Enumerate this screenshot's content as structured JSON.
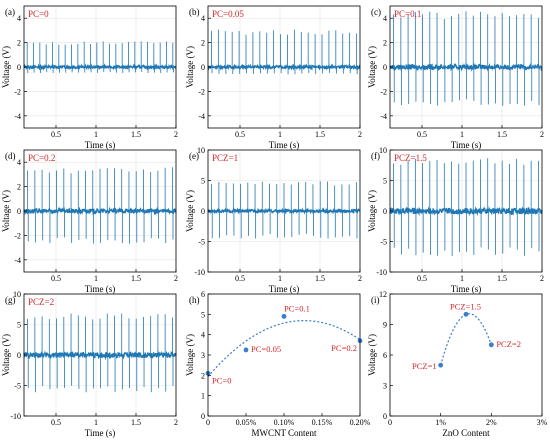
{
  "colors": {
    "signal": "#1f77b4",
    "label_red": "#d62728",
    "point": "#3a7dc9",
    "axis": "#000000"
  },
  "chart_data": [
    {
      "panel": "(a)",
      "label": "PC=0",
      "type": "line",
      "xlabel": "Time (s)",
      "ylabel": "Voltage (V)",
      "xlim": [
        0.1,
        2
      ],
      "ylim": [
        -5,
        5
      ],
      "xticks": [
        0.5,
        1,
        1.5,
        2
      ],
      "yticks": [
        -4,
        -2,
        0,
        2,
        4
      ],
      "xticklabels": [
        "0.5",
        "1",
        "1.5",
        "2"
      ],
      "yticklabels": [
        "-4",
        "-2",
        "0",
        "2",
        "4"
      ],
      "grid": true,
      "signal": {
        "peak_count": 24,
        "pos_amplitude": 2.1,
        "neg_amplitude": -0.5,
        "noise": 0.12
      }
    },
    {
      "panel": "(b)",
      "label": "PC=0.05",
      "type": "line",
      "xlabel": "Time (s)",
      "ylabel": "Voltage (V)",
      "xlim": [
        0.1,
        2
      ],
      "ylim": [
        -5,
        5
      ],
      "xticks": [
        0.5,
        1,
        1.5,
        2
      ],
      "yticks": [
        -4,
        -2,
        0,
        2,
        4
      ],
      "xticklabels": [
        "0.5",
        "1",
        "1.5",
        "2"
      ],
      "yticklabels": [
        "-4",
        "-2",
        "0",
        "2",
        "4"
      ],
      "grid": true,
      "signal": {
        "peak_count": 22,
        "pos_amplitude": 3.1,
        "neg_amplitude": -0.6,
        "noise": 0.12
      }
    },
    {
      "panel": "(c)",
      "label": "PC=0.1",
      "type": "line",
      "xlabel": "Time (s)",
      "ylabel": "Voltage (V)",
      "xlim": [
        0.1,
        2
      ],
      "ylim": [
        -5,
        5
      ],
      "xticks": [
        0.5,
        1,
        1.5,
        2
      ],
      "yticks": [
        -4,
        -2,
        0,
        2,
        4
      ],
      "xticklabels": [
        "0.5",
        "1",
        "1.5",
        "2"
      ],
      "yticklabels": [
        "-4",
        "-2",
        "0",
        "2",
        "4"
      ],
      "grid": true,
      "signal": {
        "peak_count": 21,
        "pos_amplitude": 4.6,
        "neg_amplitude": -3.3,
        "noise": 0.2
      }
    },
    {
      "panel": "(d)",
      "label": "PC=0.2",
      "type": "line",
      "xlabel": "Time (s)",
      "ylabel": "Voltage (V)",
      "xlim": [
        0.1,
        2
      ],
      "ylim": [
        -5,
        5
      ],
      "xticks": [
        0.5,
        1,
        1.5,
        2
      ],
      "yticks": [
        -4,
        -2,
        0,
        2,
        4
      ],
      "xticklabels": [
        "0.5",
        "1",
        "1.5",
        "2"
      ],
      "yticklabels": [
        "-4",
        "-2",
        "0",
        "2",
        "4"
      ],
      "grid": true,
      "signal": {
        "peak_count": 21,
        "pos_amplitude": 3.6,
        "neg_amplitude": -2.7,
        "noise": 0.18
      }
    },
    {
      "panel": "(e)",
      "label": "PCZ=1",
      "type": "line",
      "xlabel": "Time (s)",
      "ylabel": "Voltage (V)",
      "xlim": [
        0.1,
        2
      ],
      "ylim": [
        -10,
        10
      ],
      "xticks": [
        0.5,
        1,
        1.5,
        2
      ],
      "yticks": [
        -10,
        -5,
        0,
        5,
        10
      ],
      "xticklabels": [
        "0.5",
        "1",
        "1.5",
        "2"
      ],
      "yticklabels": [
        "-10",
        "-5",
        "0",
        "5",
        "10"
      ],
      "grid": true,
      "signal": {
        "peak_count": 21,
        "pos_amplitude": 4.9,
        "neg_amplitude": -4.6,
        "noise": 0.25
      }
    },
    {
      "panel": "(f)",
      "label": "PCZ=1.5",
      "type": "line",
      "xlabel": "Time (s)",
      "ylabel": "Voltage (V)",
      "xlim": [
        0.1,
        2
      ],
      "ylim": [
        -10,
        10
      ],
      "xticks": [
        0.5,
        1,
        1.5,
        2
      ],
      "yticks": [
        -10,
        -5,
        0,
        5,
        10
      ],
      "xticklabels": [
        "0.5",
        "1",
        "1.5",
        "2"
      ],
      "yticklabels": [
        "-10",
        "-5",
        "0",
        "5",
        "10"
      ],
      "grid": true,
      "signal": {
        "peak_count": 21,
        "pos_amplitude": 8.8,
        "neg_amplitude": -7.4,
        "noise": 0.5
      }
    },
    {
      "panel": "(g)",
      "label": "PCZ=2",
      "type": "line",
      "xlabel": "Time (s)",
      "ylabel": "Voltage (V)",
      "xlim": [
        0.1,
        2
      ],
      "ylim": [
        -10,
        10
      ],
      "xticks": [
        0.5,
        1,
        1.5,
        2
      ],
      "yticks": [
        -10,
        -5,
        0,
        5,
        10
      ],
      "xticklabels": [
        "0.5",
        "1",
        "1.5",
        "2"
      ],
      "yticklabels": [
        "-10",
        "-5",
        "0",
        "5",
        "10"
      ],
      "grid": true,
      "signal": {
        "peak_count": 21,
        "pos_amplitude": 6.8,
        "neg_amplitude": -6.3,
        "noise": 0.45
      }
    },
    {
      "panel": "(h)",
      "type": "scatter",
      "xlabel": "MWCNT Content",
      "ylabel": "Voltage (V)",
      "xlim": [
        0,
        0.2
      ],
      "ylim": [
        0,
        6
      ],
      "xticks": [
        0,
        0.05,
        0.1,
        0.15,
        0.2
      ],
      "yticks": [
        0,
        1,
        2,
        3,
        4,
        5,
        6
      ],
      "xticklabels": [
        "0",
        "0.05%",
        "0.10%",
        "0.15%",
        "0.20%"
      ],
      "yticklabels": [
        "0",
        "1",
        "2",
        "3",
        "4",
        "5",
        "6"
      ],
      "grid": false,
      "x": [
        0,
        0.05,
        0.1,
        0.2
      ],
      "y": [
        2.1,
        3.25,
        4.9,
        3.7
      ],
      "point_labels": [
        "PC=0",
        "PC=0.05",
        "PC=0.1",
        "PC=0.2"
      ],
      "fit": "quadratic"
    },
    {
      "panel": "(i)",
      "type": "scatter",
      "xlabel": "ZnO Content",
      "ylabel": "Voltage (V)",
      "xlim": [
        0,
        3
      ],
      "ylim": [
        0,
        12
      ],
      "xticks": [
        0,
        1,
        2,
        3
      ],
      "yticks": [
        0,
        3,
        6,
        9,
        12
      ],
      "xticklabels": [
        "0",
        "1%",
        "2%",
        "3%"
      ],
      "yticklabels": [
        "0",
        "3",
        "6",
        "9",
        "12"
      ],
      "grid": false,
      "x": [
        1,
        1.5,
        2
      ],
      "y": [
        5.0,
        10.0,
        7.0
      ],
      "point_labels": [
        "PCZ=1",
        "PCZ=1.5",
        "PCZ=2"
      ],
      "fit": "quadratic"
    }
  ]
}
